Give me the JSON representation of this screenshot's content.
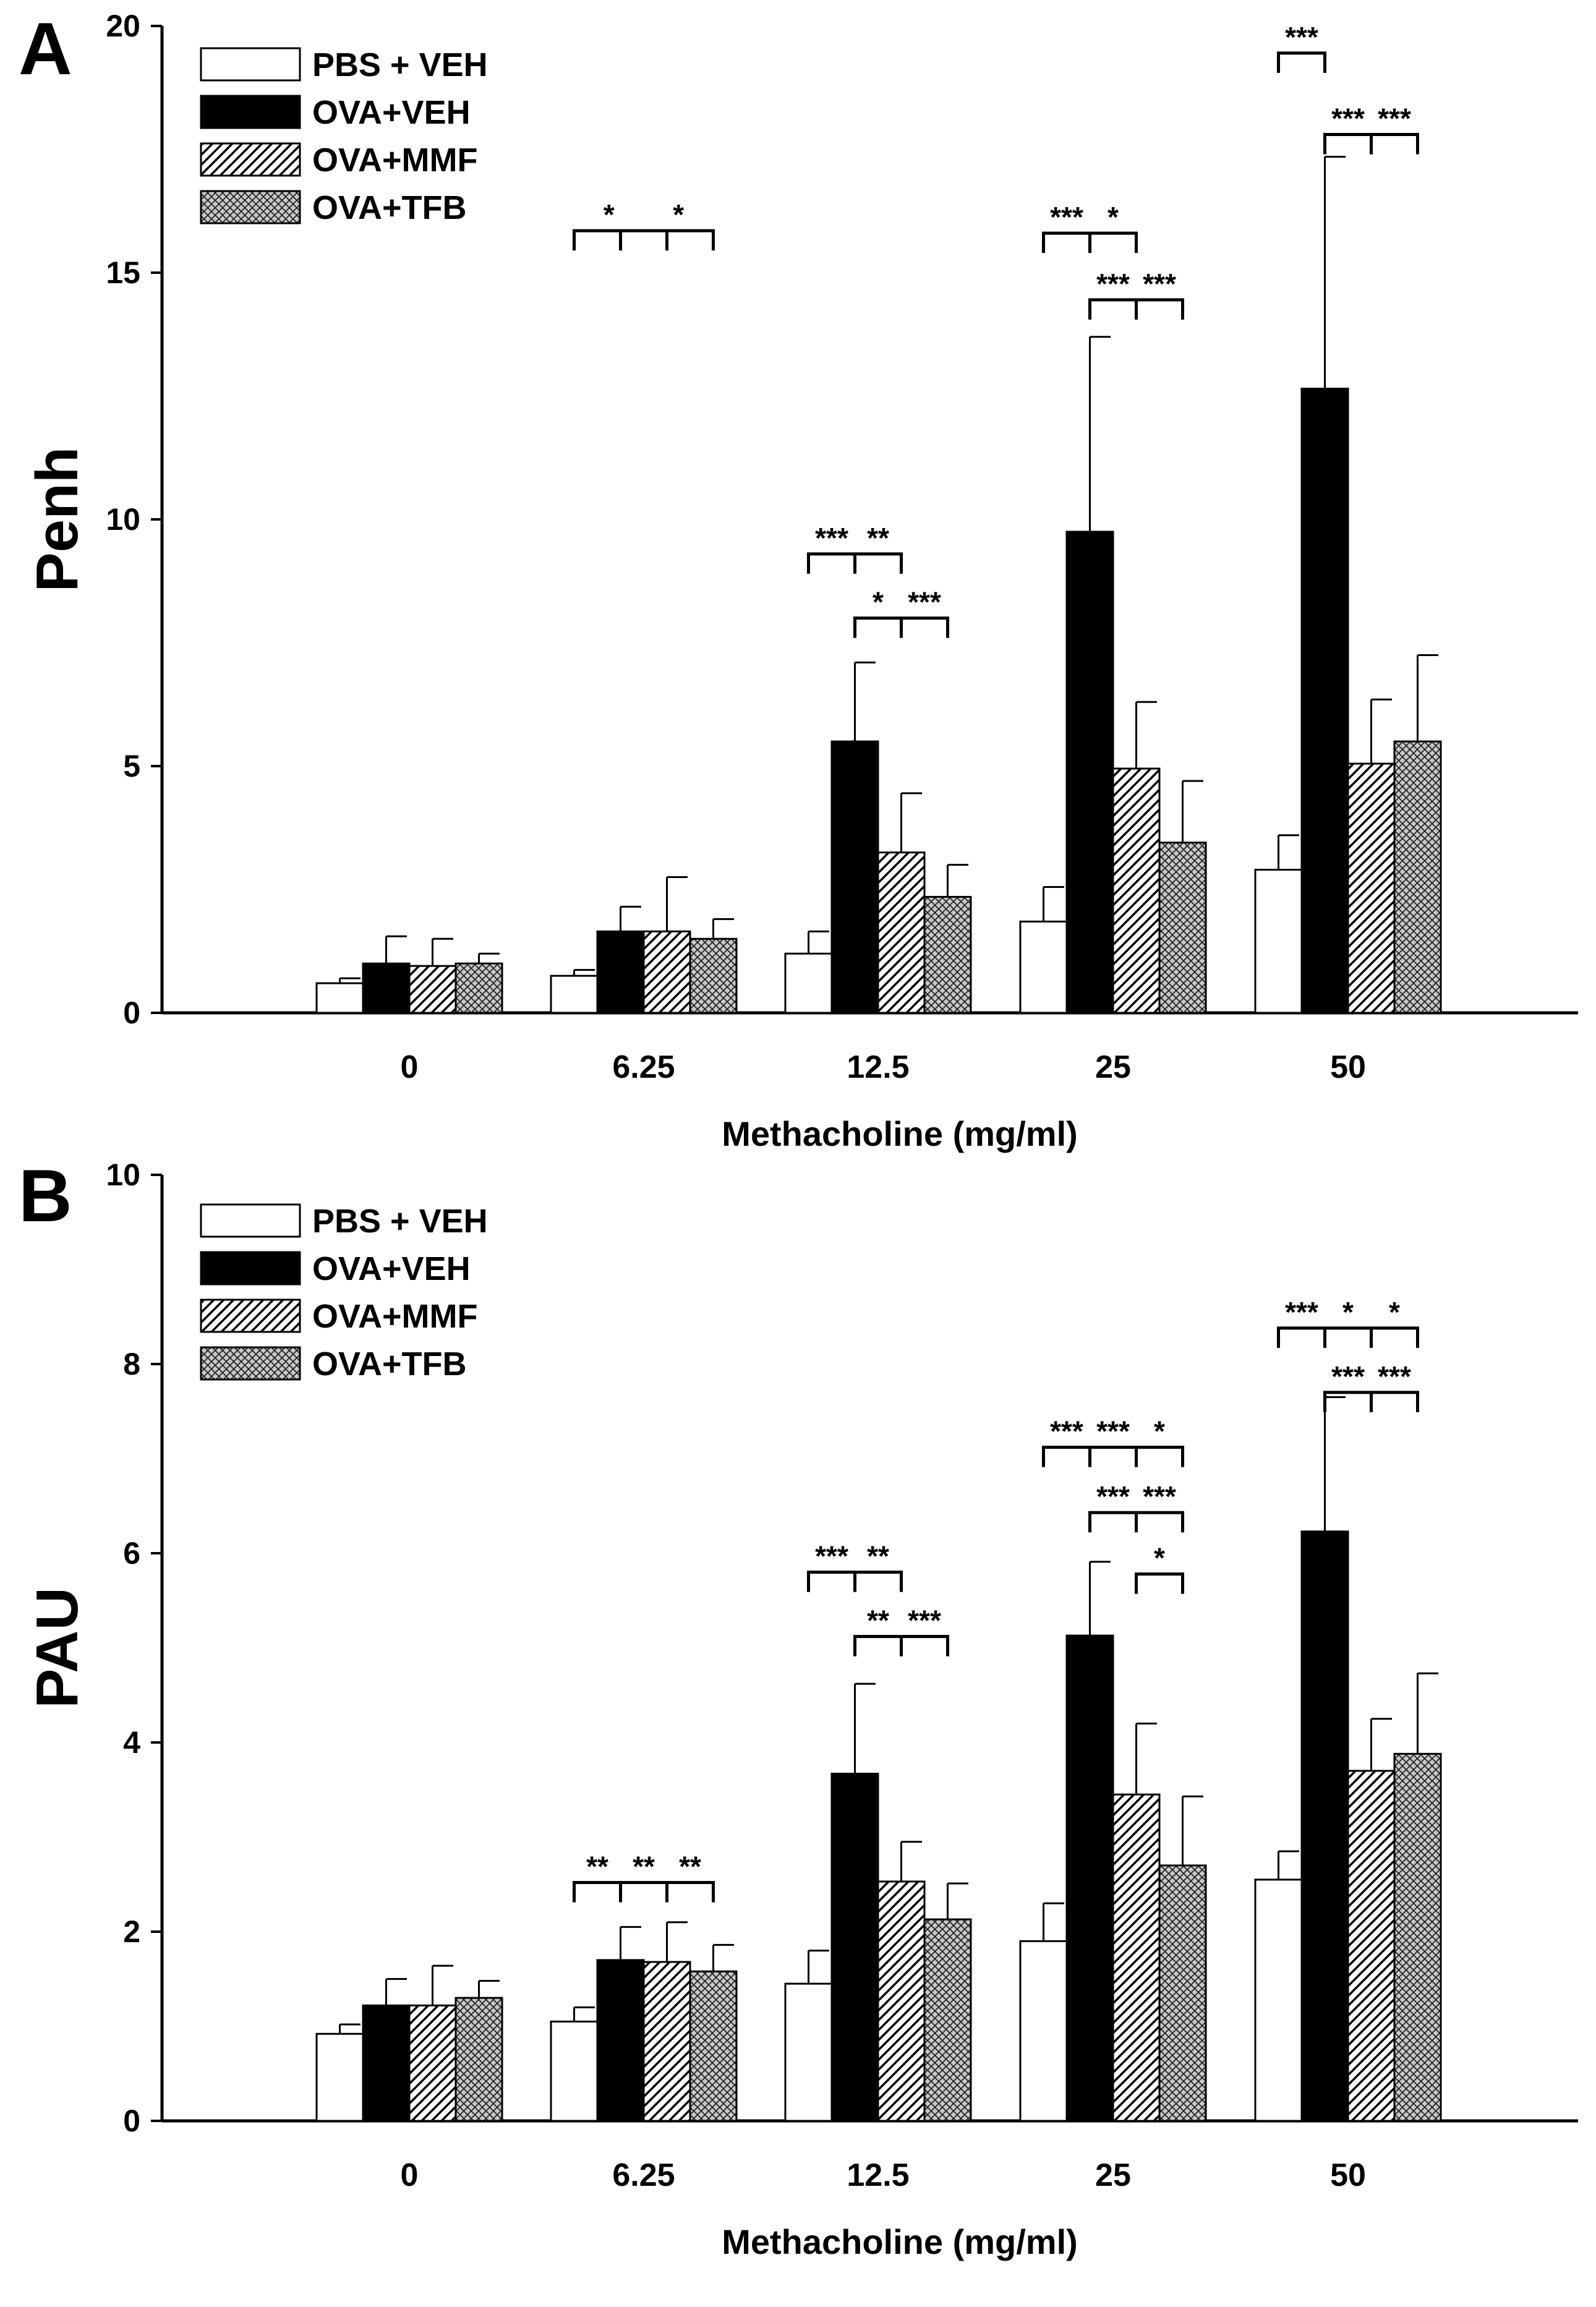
{
  "figure": {
    "legend": [
      {
        "label": "PBS + VEH",
        "pattern": "white"
      },
      {
        "label": "OVA+VEH",
        "pattern": "black"
      },
      {
        "label": "OVA+MMF",
        "pattern": "hatch"
      },
      {
        "label": "OVA+TFB",
        "pattern": "crosshatch"
      }
    ]
  },
  "colors": {
    "bar_black": "#000000",
    "bar_white": "#ffffff",
    "axis": "#000000"
  },
  "chart_data": [
    {
      "type": "bar",
      "panel": "A",
      "title": "",
      "xlabel": "Methacholine (mg/ml)",
      "ylabel": "Penh",
      "ylim": [
        0,
        20
      ],
      "yticks": [
        "0",
        "5",
        "10",
        "15",
        "20"
      ],
      "categories": [
        "0",
        "6.25",
        "12.5",
        "25",
        "50"
      ],
      "series": [
        {
          "name": "PBS + VEH",
          "values": [
            0.6,
            0.75,
            1.2,
            1.85,
            2.9
          ],
          "errors": [
            0.1,
            0.12,
            0.45,
            0.7,
            0.7
          ]
        },
        {
          "name": "OVA+VEH",
          "values": [
            1.0,
            1.65,
            5.5,
            9.75,
            12.65
          ],
          "errors": [
            0.55,
            0.5,
            1.6,
            3.95,
            4.7
          ]
        },
        {
          "name": "OVA+MMF",
          "values": [
            0.95,
            1.65,
            3.25,
            4.95,
            5.05
          ],
          "errors": [
            0.55,
            1.1,
            1.2,
            1.35,
            1.3
          ]
        },
        {
          "name": "OVA+TFB",
          "values": [
            1.0,
            1.5,
            2.35,
            3.45,
            5.5
          ],
          "errors": [
            0.2,
            0.4,
            0.65,
            1.25,
            1.75
          ]
        }
      ],
      "annotations": [
        {
          "cat": 1,
          "from": 0,
          "to": 3,
          "level": 15.85,
          "ticks": [
            1,
            2
          ],
          "text": [
            "*",
            "*"
          ]
        },
        {
          "cat": 2,
          "from": 0,
          "to": 2,
          "level": 9.3,
          "ticks": [
            1
          ],
          "text": [
            "***",
            "**"
          ]
        },
        {
          "cat": 2,
          "from": 1,
          "to": 3,
          "level": 8.0,
          "ticks": [
            2
          ],
          "text": [
            "*",
            "***"
          ]
        },
        {
          "cat": 3,
          "from": 0,
          "to": 2,
          "level": 15.8,
          "ticks": [
            1
          ],
          "text": [
            "***",
            "*"
          ]
        },
        {
          "cat": 3,
          "from": 1,
          "to": 3,
          "level": 14.45,
          "ticks": [
            2
          ],
          "text": [
            "***",
            "***"
          ]
        },
        {
          "cat": 4,
          "from": 0,
          "to": 1,
          "level": 19.45,
          "ticks": [],
          "text": [
            "***"
          ]
        },
        {
          "cat": 4,
          "from": 1,
          "to": 3,
          "level": 17.8,
          "ticks": [
            2
          ],
          "text": [
            "***",
            "***"
          ]
        }
      ]
    },
    {
      "type": "bar",
      "panel": "B",
      "title": "",
      "xlabel": "Methacholine (mg/ml)",
      "ylabel": "PAU",
      "ylim": [
        0,
        10
      ],
      "yticks": [
        "0",
        "2",
        "4",
        "6",
        "8",
        "10"
      ],
      "categories": [
        "0",
        "6.25",
        "12.5",
        "25",
        "50"
      ],
      "series": [
        {
          "name": "PBS + VEH",
          "values": [
            0.92,
            1.05,
            1.45,
            1.9,
            2.55
          ],
          "errors": [
            0.1,
            0.15,
            0.35,
            0.4,
            0.3
          ]
        },
        {
          "name": "OVA+VEH",
          "values": [
            1.22,
            1.7,
            3.67,
            5.13,
            6.23
          ],
          "errors": [
            0.28,
            0.35,
            0.95,
            0.78,
            1.42
          ]
        },
        {
          "name": "OVA+MMF",
          "values": [
            1.22,
            1.68,
            2.53,
            3.45,
            3.7
          ],
          "errors": [
            0.42,
            0.42,
            0.42,
            0.75,
            0.55
          ]
        },
        {
          "name": "OVA+TFB",
          "values": [
            1.3,
            1.58,
            2.13,
            2.7,
            3.88
          ],
          "errors": [
            0.18,
            0.28,
            0.38,
            0.73,
            0.85
          ]
        }
      ],
      "annotations": [
        {
          "cat": 1,
          "from": 0,
          "to": 3,
          "level": 2.52,
          "ticks": [
            1,
            2
          ],
          "text": [
            "**",
            "**",
            "**"
          ]
        },
        {
          "cat": 2,
          "from": 0,
          "to": 2,
          "level": 5.8,
          "ticks": [
            1
          ],
          "text": [
            "***",
            "**"
          ]
        },
        {
          "cat": 2,
          "from": 1,
          "to": 3,
          "level": 5.12,
          "ticks": [
            2
          ],
          "text": [
            "**",
            "***"
          ]
        },
        {
          "cat": 3,
          "from": 0,
          "to": 3,
          "level": 7.12,
          "ticks": [
            1,
            2
          ],
          "text": [
            "***",
            "***",
            "*"
          ]
        },
        {
          "cat": 3,
          "from": 1,
          "to": 3,
          "level": 6.43,
          "ticks": [
            2
          ],
          "text": [
            "***",
            "***"
          ]
        },
        {
          "cat": 3,
          "from": 2,
          "to": 3,
          "level": 5.78,
          "ticks": [],
          "text": [
            "*"
          ]
        },
        {
          "cat": 4,
          "from": 0,
          "to": 3,
          "level": 8.38,
          "ticks": [
            1,
            2
          ],
          "text": [
            "***",
            "*",
            "*"
          ]
        },
        {
          "cat": 4,
          "from": 1,
          "to": 3,
          "level": 7.7,
          "ticks": [
            2
          ],
          "text": [
            "***",
            "***"
          ]
        }
      ]
    }
  ]
}
